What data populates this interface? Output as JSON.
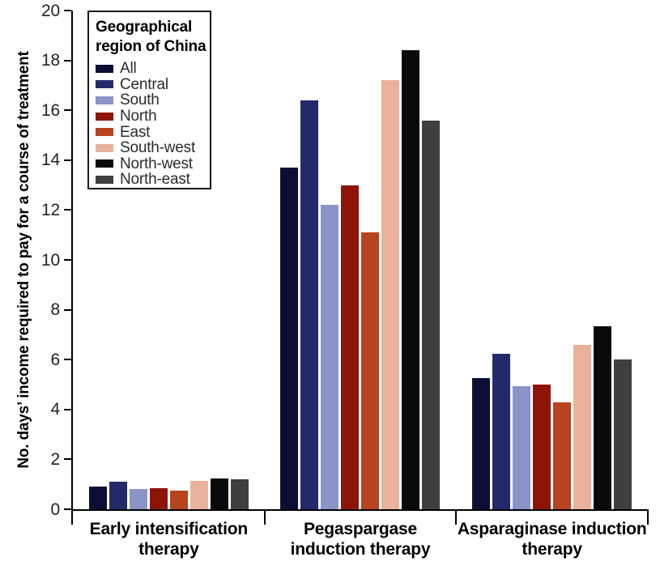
{
  "figure": {
    "ylabel": "No. days’ income required to pay for a course of treatment",
    "legend_title": "Geographical\nregion of China"
  },
  "chart_data": {
    "type": "bar",
    "title": "",
    "xlabel": "",
    "ylabel": "No. days’ income required to pay for a course of treatment",
    "ylim": [
      0,
      20
    ],
    "yticks": [
      0,
      2,
      4,
      6,
      8,
      10,
      12,
      14,
      16,
      18,
      20
    ],
    "grid": false,
    "legend_title": "Geographical\nregion of China",
    "legend_position": "upper-left-inside",
    "categories": [
      "Early intensification\ntherapy",
      "Pegaspargase\ninduction therapy",
      "Asparaginase induction\ntherapy"
    ],
    "series": [
      {
        "name": "All",
        "color": "#0c0e36",
        "values": [
          0.9,
          13.7,
          5.25
        ]
      },
      {
        "name": "Central",
        "color": "#232a6b",
        "values": [
          1.1,
          16.4,
          6.25
        ]
      },
      {
        "name": "South",
        "color": "#8b94c6",
        "values": [
          0.8,
          12.2,
          4.95
        ]
      },
      {
        "name": "North",
        "color": "#8e1408",
        "values": [
          0.85,
          13.0,
          5.0
        ]
      },
      {
        "name": "East",
        "color": "#b8431f",
        "values": [
          0.75,
          11.1,
          4.3
        ]
      },
      {
        "name": "South-west",
        "color": "#eab29b",
        "values": [
          1.15,
          17.2,
          6.6
        ]
      },
      {
        "name": "North-west",
        "color": "#0a0a0a",
        "values": [
          1.25,
          18.4,
          7.35
        ]
      },
      {
        "name": "North-east",
        "color": "#3d3f41",
        "values": [
          1.2,
          15.6,
          6.0
        ]
      }
    ]
  }
}
